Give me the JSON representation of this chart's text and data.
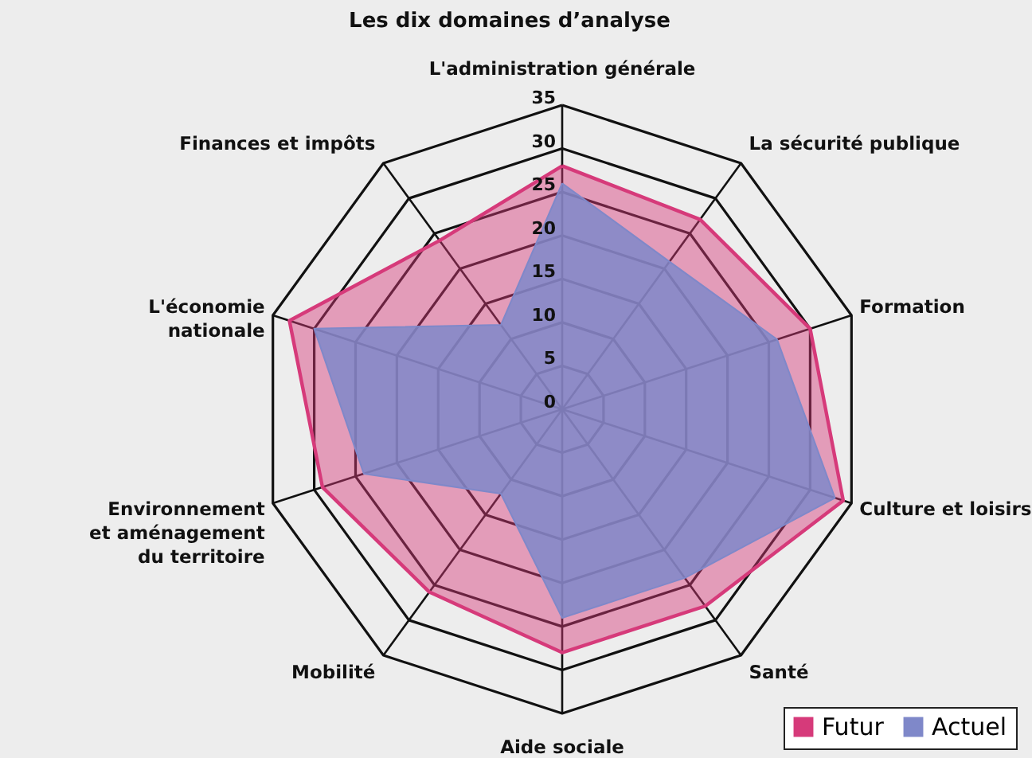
{
  "chart_data": {
    "type": "radar",
    "title": "Les dix domaines d’analyse",
    "categories": [
      "L'administration générale",
      "La sécurité publique",
      "Formation",
      "Culture et loisirs",
      "Santé",
      "Aide sociale",
      "Mobilité",
      "Environnement\net aménagement\ndu territoire",
      "L'économie\nnationale",
      "Finances et impôts"
    ],
    "series": [
      {
        "name": "Futur",
        "color": "#d63a7a",
        "values": [
          28,
          27,
          30,
          34,
          28,
          28,
          26,
          29,
          33,
          24
        ]
      },
      {
        "name": "Actuel",
        "color": "#7f88c9",
        "values": [
          26,
          21,
          26,
          33,
          24,
          24,
          12,
          24,
          30,
          12
        ]
      }
    ],
    "ylim": [
      0,
      35
    ],
    "yticks": [
      0,
      5,
      10,
      15,
      20,
      25,
      30,
      35
    ],
    "grid": true,
    "legend": "bottom right"
  }
}
